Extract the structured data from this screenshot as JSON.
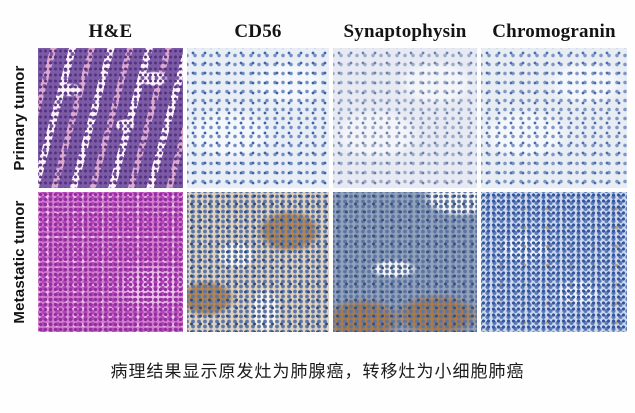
{
  "figure": {
    "background": "#fefefe",
    "column_headers": [
      "H&E",
      "CD56",
      "Synaptophysin",
      "Chromogranin"
    ],
    "row_labels": [
      "Primary tumor",
      "Metastatic tumor"
    ],
    "caption": "病理结果显示原发灶为肺腺癌，转移灶为小细胞肺癌",
    "tiles": [
      {
        "name": "primary-tumor-he",
        "row": "Primary tumor",
        "stain": "H&E",
        "appearance": "purple glandular (adenocarcinoma) structures with pink stroma and white lumens",
        "colors": {
          "c0": "#efd7e7",
          "c1": "#7b5aa6",
          "c2": "#55307d",
          "c3": "#dca8cf",
          "c4": "#fdf2fa"
        }
      },
      {
        "name": "primary-tumor-cd56",
        "row": "Primary tumor",
        "stain": "CD56",
        "appearance": "negative: pale blue field with scattered blue nuclei",
        "colors": {
          "c0": "#e9eef6",
          "c1": "#7390c4",
          "c2": "#3f64a8",
          "c3": "#f4f7fb"
        }
      },
      {
        "name": "primary-tumor-synaptophysin",
        "row": "Primary tumor",
        "stain": "Synaptophysin",
        "appearance": "negative: very pale lavender field, faint sparse nuclei",
        "colors": {
          "c0": "#e7eaf2",
          "c1": "#9daccb",
          "c2": "#6e80ab",
          "c3": "#f3f5f9"
        }
      },
      {
        "name": "primary-tumor-chromogranin",
        "row": "Primary tumor",
        "stain": "Chromogranin",
        "appearance": "negative: pale field with moderate blue nuclear clusters",
        "colors": {
          "c0": "#e8edf4",
          "c1": "#7f97c4",
          "c2": "#4c6cab",
          "c3": "#f4f7fb"
        }
      },
      {
        "name": "metastatic-tumor-he",
        "row": "Metastatic tumor",
        "stain": "H&E",
        "appearance": "dense magenta small-cell sheets",
        "colors": {
          "c0": "#d47fce",
          "c1": "#b844bc",
          "c2": "#8c2f9c",
          "c3": "#efc4ec"
        }
      },
      {
        "name": "metastatic-tumor-cd56",
        "row": "Metastatic tumor",
        "stain": "CD56",
        "appearance": "positive: brown staining with blue nuclei and white clefts",
        "colors": {
          "c0": "#e0d2be",
          "c1": "#5a76a8",
          "c2": "#2f4a7d",
          "c3": "#b5854f",
          "c4": "#f8f4ed"
        }
      },
      {
        "name": "metastatic-tumor-synaptophysin",
        "row": "Metastatic tumor",
        "stain": "Synaptophysin",
        "appearance": "positive: blue-gray sheet with brown staining toward base, white notch top-right",
        "colors": {
          "c0": "#93a2bc",
          "c1": "#5d75a0",
          "c2": "#33507e",
          "c3": "#ab7a48",
          "c4": "#f4f4f1"
        }
      },
      {
        "name": "metastatic-tumor-chromogranin",
        "row": "Metastatic tumor",
        "stain": "Chromogranin",
        "appearance": "dense blue nuclei with pale streaks and scattered tan flecks",
        "colors": {
          "c0": "#cdd8ea",
          "c1": "#5b79b8",
          "c2": "#31539e",
          "c3": "#c5a26b",
          "c4": "#eef2f8"
        }
      }
    ]
  }
}
